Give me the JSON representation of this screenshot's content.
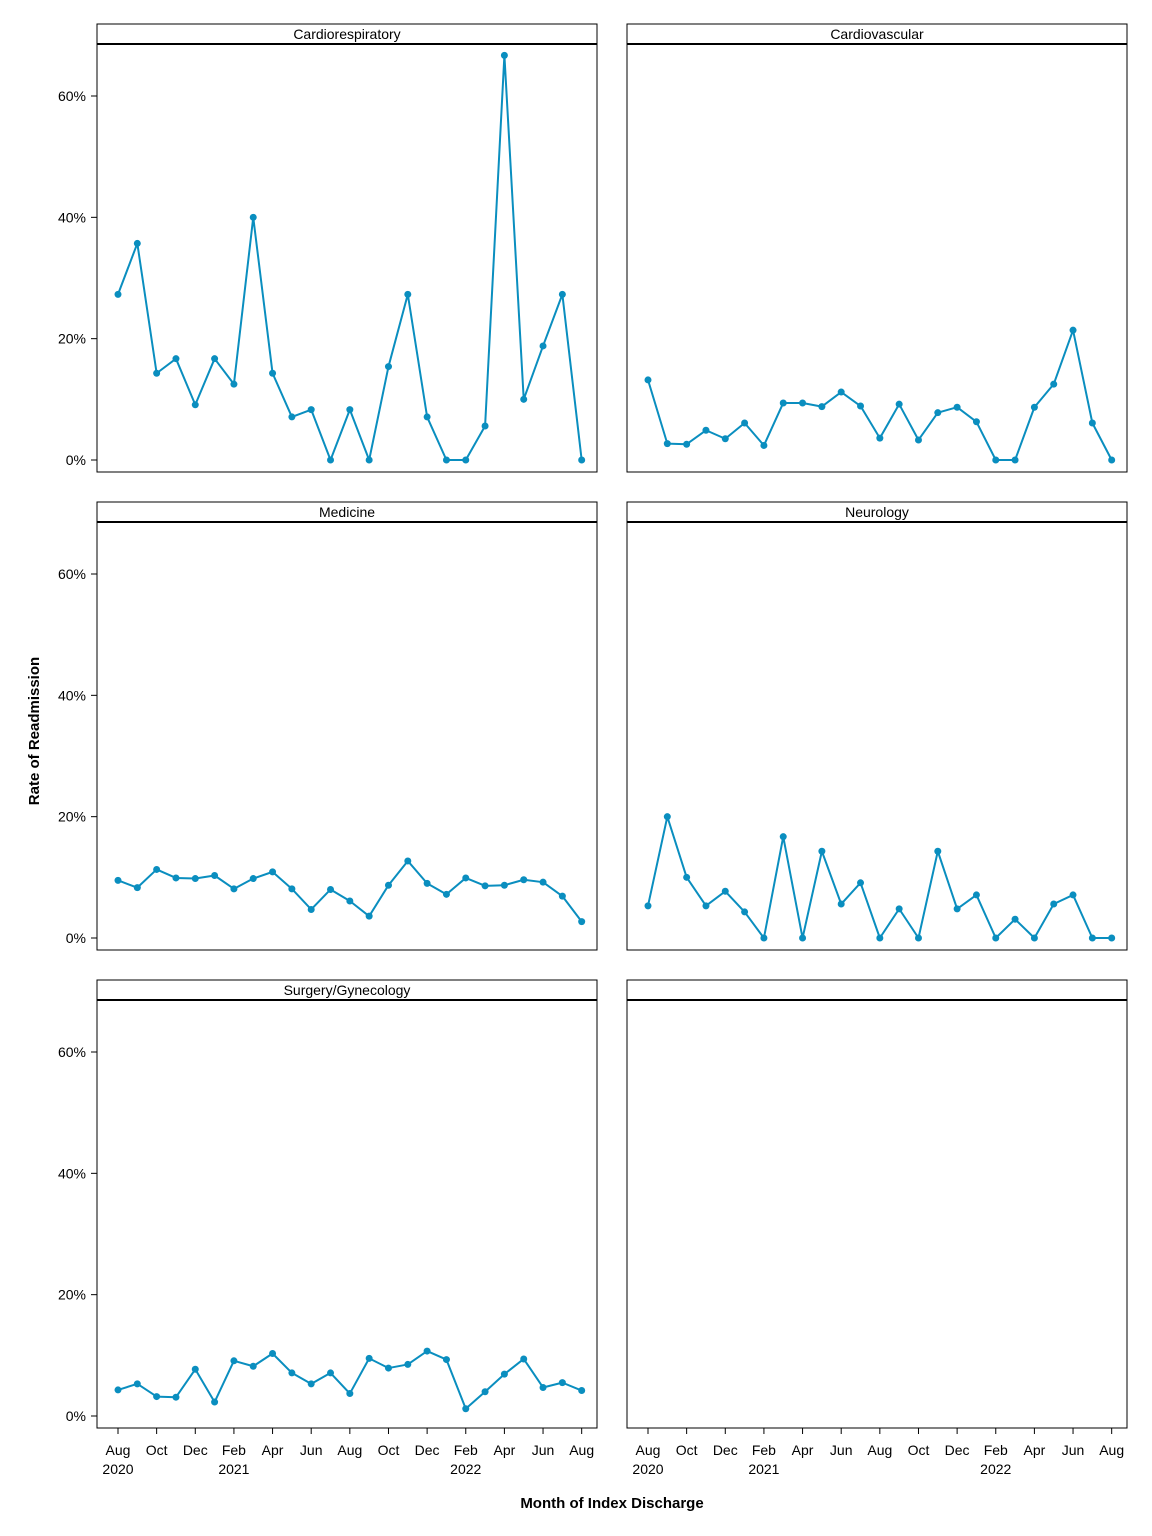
{
  "chart_data": {
    "type": "line",
    "xlabel": "Month of Index Discharge",
    "ylabel": "Rate of Readmission",
    "ylim": [
      0,
      70
    ],
    "y_ticks": [
      0,
      20,
      40,
      60
    ],
    "y_tick_labels": [
      "0%",
      "20%",
      "40%",
      "60%"
    ],
    "x": [
      "2020-08",
      "2020-09",
      "2020-10",
      "2020-11",
      "2020-12",
      "2021-01",
      "2021-02",
      "2021-03",
      "2021-04",
      "2021-05",
      "2021-06",
      "2021-07",
      "2021-08",
      "2021-09",
      "2021-10",
      "2021-11",
      "2021-12",
      "2022-01",
      "2022-02",
      "2022-03",
      "2022-04",
      "2022-05",
      "2022-06",
      "2022-07",
      "2022-08"
    ],
    "x_ticks": [
      {
        "month": "Aug",
        "year": "2020"
      },
      {
        "month": "Oct",
        "year": ""
      },
      {
        "month": "Dec",
        "year": ""
      },
      {
        "month": "Feb",
        "year": "2021"
      },
      {
        "month": "Apr",
        "year": ""
      },
      {
        "month": "Jun",
        "year": ""
      },
      {
        "month": "Aug",
        "year": ""
      },
      {
        "month": "Oct",
        "year": ""
      },
      {
        "month": "Dec",
        "year": ""
      },
      {
        "month": "Feb",
        "year": "2022"
      },
      {
        "month": "Apr",
        "year": ""
      },
      {
        "month": "Jun",
        "year": ""
      },
      {
        "month": "Aug",
        "year": ""
      }
    ],
    "line_color": "#0a8ebf",
    "grid": false,
    "panels": [
      {
        "name": "Cardiorespiratory",
        "values": [
          27.3,
          35.7,
          14.3,
          16.7,
          9.1,
          16.7,
          12.5,
          40.0,
          14.3,
          7.1,
          8.3,
          0,
          8.3,
          0,
          15.4,
          27.3,
          7.1,
          0,
          0,
          5.6,
          66.7,
          10.0,
          18.8,
          27.3,
          0
        ]
      },
      {
        "name": "Cardiovascular",
        "values": [
          13.2,
          2.7,
          2.6,
          4.9,
          3.5,
          6.1,
          2.4,
          9.4,
          9.4,
          8.8,
          11.2,
          8.9,
          3.6,
          9.2,
          3.3,
          7.8,
          8.7,
          6.3,
          0,
          0,
          8.7,
          12.5,
          21.4,
          6.1,
          0
        ]
      },
      {
        "name": "Medicine",
        "values": [
          9.5,
          8.3,
          11.3,
          9.9,
          9.8,
          10.3,
          8.1,
          9.8,
          10.9,
          8.1,
          4.7,
          8.0,
          6.1,
          3.6,
          8.7,
          12.7,
          9.0,
          7.2,
          9.9,
          8.6,
          8.7,
          9.6,
          9.2,
          6.9,
          2.7
        ]
      },
      {
        "name": "Neurology",
        "values": [
          5.3,
          20.0,
          10.0,
          5.3,
          7.7,
          4.3,
          0,
          16.7,
          0,
          14.3,
          5.6,
          9.1,
          0,
          4.8,
          0,
          14.3,
          4.8,
          7.1,
          0,
          3.1,
          0,
          5.6,
          7.1,
          0,
          0
        ]
      },
      {
        "name": "Surgery/Gynecology",
        "values": [
          4.3,
          5.3,
          3.2,
          3.1,
          7.7,
          2.3,
          9.1,
          8.2,
          10.3,
          7.1,
          5.3,
          7.1,
          3.7,
          9.5,
          7.9,
          8.5,
          10.7,
          9.3,
          1.2,
          4.0,
          6.9,
          9.4,
          4.7,
          5.5,
          4.2
        ]
      },
      {
        "name": "",
        "values": []
      }
    ]
  }
}
